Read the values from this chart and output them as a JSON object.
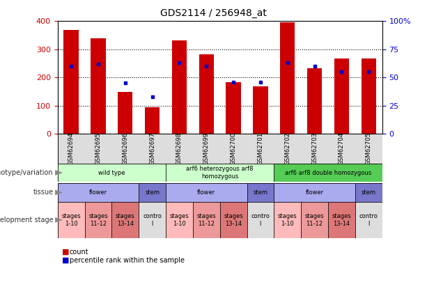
{
  "title": "GDS2114 / 256948_at",
  "samples": [
    "GSM62694",
    "GSM62695",
    "GSM62696",
    "GSM62697",
    "GSM62698",
    "GSM62699",
    "GSM62700",
    "GSM62701",
    "GSM62702",
    "GSM62703",
    "GSM62704",
    "GSM62705"
  ],
  "counts": [
    370,
    338,
    150,
    95,
    332,
    283,
    183,
    170,
    395,
    233,
    268,
    268
  ],
  "percentile_ranks": [
    60,
    62,
    45,
    33,
    63,
    60,
    46,
    46,
    63,
    60,
    55,
    55
  ],
  "ylim_left": [
    0,
    400
  ],
  "ylim_right": [
    0,
    100
  ],
  "yticks_left": [
    0,
    100,
    200,
    300,
    400
  ],
  "yticks_right": [
    0,
    25,
    50,
    75,
    100
  ],
  "bar_color": "#cc0000",
  "dot_color": "#0000cc",
  "background_color": "#ffffff",
  "tick_label_color_left": "#cc0000",
  "tick_label_color_right": "#0000cc",
  "geno_groups": [
    {
      "label": "wild type",
      "start": 0,
      "end": 4,
      "color": "#ccffcc"
    },
    {
      "label": "arf6 heterozygous arf8\nhomozygous",
      "start": 4,
      "end": 8,
      "color": "#ccffcc"
    },
    {
      "label": "arf6 arf8 double homozygous",
      "start": 8,
      "end": 12,
      "color": "#55cc55"
    }
  ],
  "tissue_groups": [
    {
      "label": "flower",
      "start": 0,
      "end": 3,
      "color": "#aaaaee"
    },
    {
      "label": "stem",
      "start": 3,
      "end": 4,
      "color": "#7777cc"
    },
    {
      "label": "flower",
      "start": 4,
      "end": 7,
      "color": "#aaaaee"
    },
    {
      "label": "stem",
      "start": 7,
      "end": 8,
      "color": "#7777cc"
    },
    {
      "label": "flower",
      "start": 8,
      "end": 11,
      "color": "#aaaaee"
    },
    {
      "label": "stem",
      "start": 11,
      "end": 12,
      "color": "#7777cc"
    }
  ],
  "dev_groups": [
    {
      "label": "stages\n1-10",
      "start": 0,
      "end": 1,
      "color": "#ffbbbb"
    },
    {
      "label": "stages\n11-12",
      "start": 1,
      "end": 2,
      "color": "#ee9999"
    },
    {
      "label": "stages\n13-14",
      "start": 2,
      "end": 3,
      "color": "#dd7777"
    },
    {
      "label": "contro\nl",
      "start": 3,
      "end": 4,
      "color": "#dddddd"
    },
    {
      "label": "stages\n1-10",
      "start": 4,
      "end": 5,
      "color": "#ffbbbb"
    },
    {
      "label": "stages\n11-12",
      "start": 5,
      "end": 6,
      "color": "#ee9999"
    },
    {
      "label": "stages\n13-14",
      "start": 6,
      "end": 7,
      "color": "#dd7777"
    },
    {
      "label": "contro\nl",
      "start": 7,
      "end": 8,
      "color": "#dddddd"
    },
    {
      "label": "stages\n1-10",
      "start": 8,
      "end": 9,
      "color": "#ffbbbb"
    },
    {
      "label": "stages\n11-12",
      "start": 9,
      "end": 10,
      "color": "#ee9999"
    },
    {
      "label": "stages\n13-14",
      "start": 10,
      "end": 11,
      "color": "#dd7777"
    },
    {
      "label": "contro\nl",
      "start": 11,
      "end": 12,
      "color": "#dddddd"
    }
  ],
  "row_labels": [
    "genotype/variation",
    "tissue",
    "development stage"
  ],
  "legend_count_color": "#cc0000",
  "legend_dot_color": "#0000cc"
}
